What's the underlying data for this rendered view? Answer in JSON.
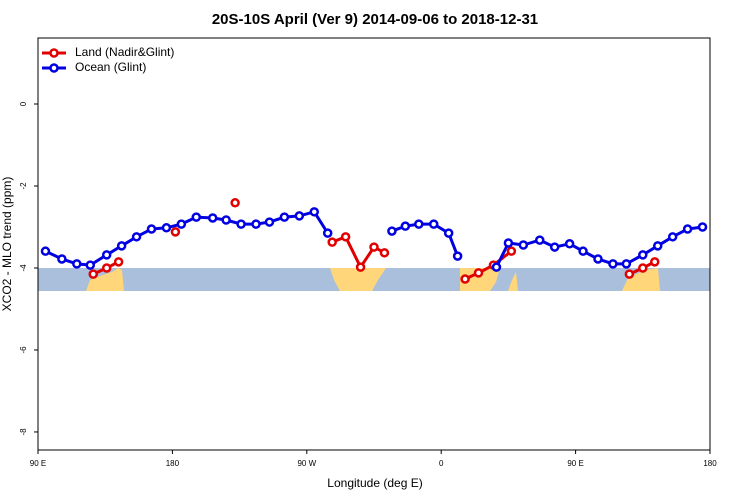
{
  "chart_data": {
    "type": "line",
    "title": "20S-10S April (Ver 9)   2014-09-06 to 2018-12-31",
    "xlabel": "Longitude (deg E)",
    "ylabel": "XCO2 - MLO trend (ppm)",
    "xlim": [
      90,
      540
    ],
    "ylim": [
      -8.44,
      1.61
    ],
    "xticks": [
      {
        "value": 90,
        "label": "90 E"
      },
      180,
      {
        "value": 270,
        "label": "90 W"
      },
      {
        "value": 360,
        "label": "0"
      },
      {
        "value": 450,
        "label": "90 E"
      },
      {
        "value": 540,
        "label": "180"
      }
    ],
    "yticks": [
      0,
      -2,
      -4,
      -6,
      -8
    ],
    "legend": "upper left",
    "series": [
      {
        "name": "Land (Nadir&Glint)",
        "color": "#e00000",
        "x": [
          127,
          136,
          144,
          160,
          182,
          200,
          222,
          250,
          287,
          296,
          306,
          315,
          322,
          350,
          376,
          385,
          395,
          407,
          450,
          486,
          495,
          503
        ],
        "values": [
          -4.15,
          -4.0,
          -3.85,
          null,
          -3.12,
          null,
          -2.41,
          null,
          -3.37,
          -3.24,
          -3.98,
          -3.49,
          -3.63,
          null,
          -4.27,
          -4.12,
          -3.93,
          -3.59,
          null,
          -4.15,
          -4.0,
          -3.85
        ]
      },
      {
        "name": "Ocean (Glint)",
        "color": "#0000e0",
        "x": [
          95,
          106,
          116,
          125,
          136,
          146,
          156,
          166,
          176,
          186,
          196,
          207,
          216,
          226,
          236,
          245,
          255,
          265,
          275,
          284,
          300,
          327,
          336,
          345,
          355,
          365,
          371,
          385,
          397,
          405,
          415,
          426,
          436,
          446,
          455,
          465,
          475,
          484,
          495,
          505,
          515,
          525,
          535
        ],
        "values": [
          -3.59,
          -3.78,
          -3.9,
          -3.93,
          -3.68,
          -3.46,
          -3.24,
          -3.05,
          -3.02,
          -2.93,
          -2.76,
          -2.78,
          -2.83,
          -2.93,
          -2.93,
          -2.88,
          -2.76,
          -2.73,
          -2.63,
          -3.15,
          null,
          -3.1,
          -2.98,
          -2.93,
          -2.93,
          -3.15,
          -3.71,
          null,
          -3.98,
          -3.39,
          -3.44,
          -3.32,
          -3.49,
          -3.41,
          -3.59,
          -3.78,
          -3.9,
          -3.9,
          -3.68,
          -3.46,
          -3.24,
          -3.05,
          -3.0
        ]
      }
    ]
  }
}
